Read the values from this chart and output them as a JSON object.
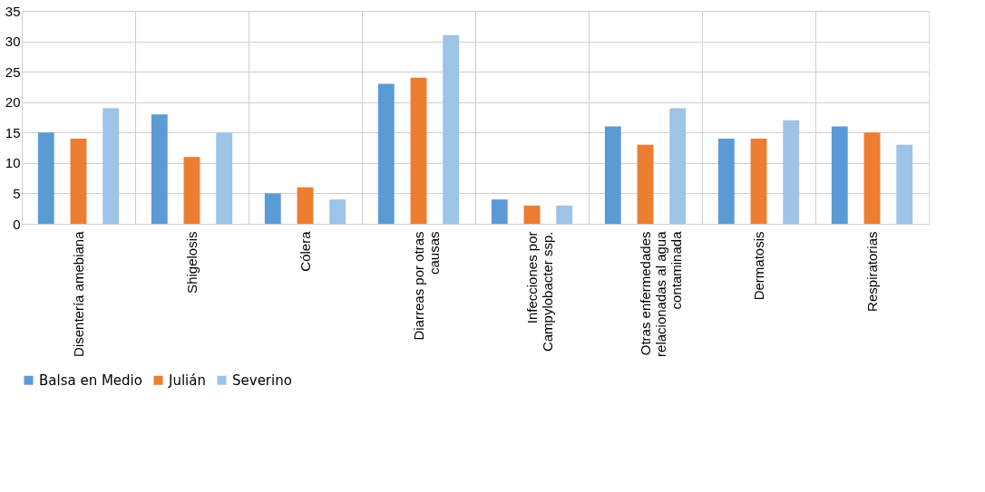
{
  "chart_data": {
    "type": "bar",
    "categories": [
      "Disentería amebiana",
      "Shigelosis",
      "Cólera",
      "Diarreas por otras causas",
      "Infecciones por Campylobacter ssp.",
      "Otras enfermedades relacionadas al agua contaminada",
      "Dermatosis",
      "Respiratorias"
    ],
    "series": [
      {
        "name": "Balsa en Medio",
        "color": "#5b9bd5",
        "values": [
          15,
          18,
          5,
          23,
          4,
          16,
          14,
          16
        ]
      },
      {
        "name": "Julián",
        "color": "#ed7d31",
        "values": [
          14,
          11,
          6,
          24,
          3,
          13,
          14,
          15
        ]
      },
      {
        "name": "Severino",
        "color": "#9dc3e6",
        "values": [
          19,
          15,
          4,
          31,
          3,
          19,
          17,
          13
        ]
      }
    ],
    "ylim": [
      0,
      35
    ],
    "yticks": [
      0,
      5,
      10,
      15,
      20,
      25,
      30,
      35
    ],
    "grid": true,
    "legend": "bottom"
  }
}
